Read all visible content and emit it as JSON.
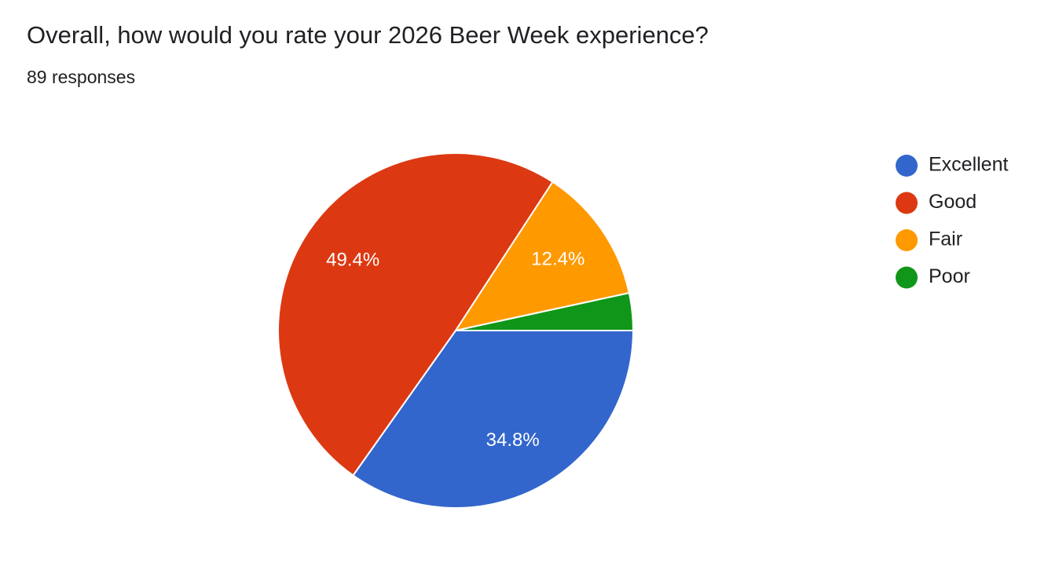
{
  "chart_data": {
    "type": "pie",
    "title": "Overall, how would you rate your 2026 Beer Week experience?",
    "subtitle": "89 responses",
    "categories": [
      "Excellent",
      "Good",
      "Fair",
      "Poor"
    ],
    "values": [
      34.8,
      49.4,
      12.4,
      3.4
    ],
    "value_labels": [
      "34.8%",
      "49.4%",
      "12.4%",
      null
    ],
    "colors": [
      "#3366cc",
      "#dc3912",
      "#ff9900",
      "#109618"
    ],
    "legend": "right"
  }
}
